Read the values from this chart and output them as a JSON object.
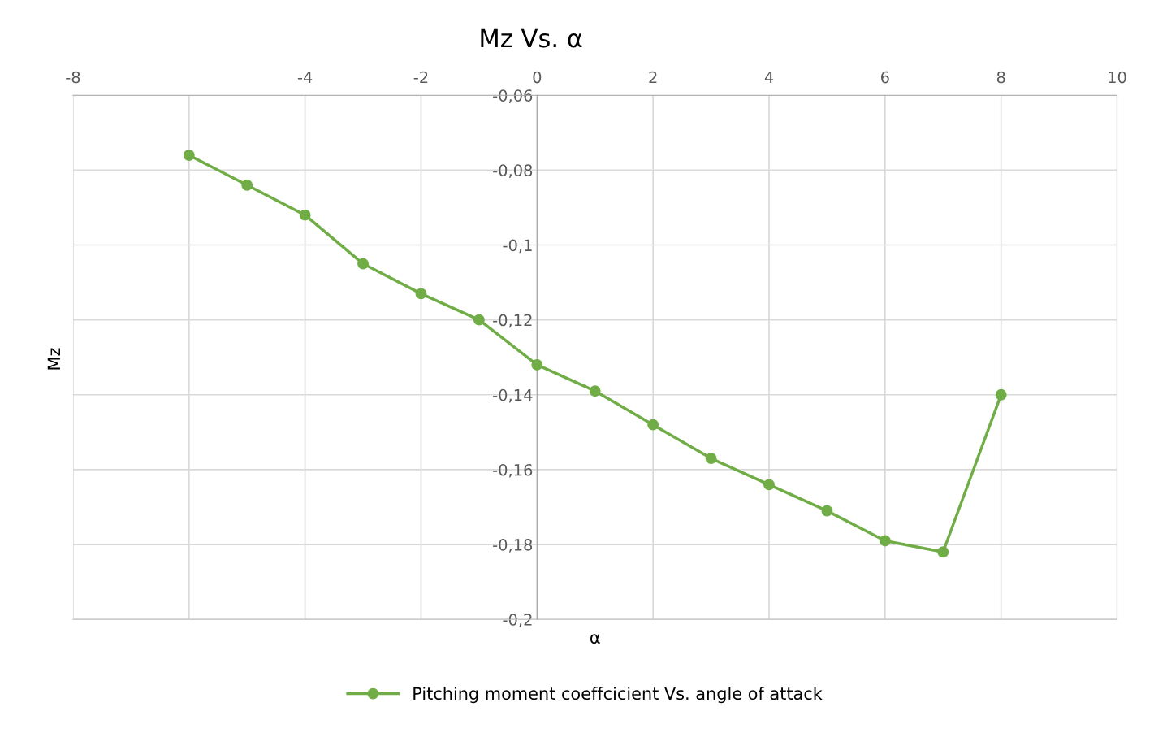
{
  "chart_data": {
    "type": "line",
    "title": "Mz Vs. α",
    "xlabel": "α",
    "ylabel": "Mz",
    "x": [
      -6,
      -5,
      -4,
      -3,
      -2,
      -1,
      0,
      1,
      2,
      3,
      4,
      5,
      6,
      7,
      8
    ],
    "series": [
      {
        "name": "Pitching moment coeffcicient Vs. angle of attack",
        "color": "#70ad47",
        "values": [
          -0.076,
          -0.084,
          -0.092,
          -0.105,
          -0.113,
          -0.12,
          -0.132,
          -0.139,
          -0.148,
          -0.157,
          -0.164,
          -0.171,
          -0.179,
          -0.182,
          -0.14
        ]
      }
    ],
    "xlim": [
      -8,
      10
    ],
    "xticks": [
      -8,
      {
        "value": -6,
        "label": null
      },
      -4,
      -2,
      0,
      2,
      4,
      6,
      8,
      10
    ],
    "ylim": [
      -0.2,
      -0.06
    ],
    "yticks": [
      {
        "value": -0.2,
        "label": "-0,2"
      },
      {
        "value": -0.18,
        "label": "-0,18"
      },
      {
        "value": -0.16,
        "label": "-0,16"
      },
      {
        "value": -0.14,
        "label": "-0,14"
      },
      {
        "value": -0.12,
        "label": "-0,12"
      },
      {
        "value": -0.1,
        "label": "-0,1"
      },
      {
        "value": -0.08,
        "label": "-0,08"
      },
      {
        "value": -0.06,
        "label": "-0,06"
      }
    ],
    "grid": true,
    "legend": "bottom",
    "marker": "circle",
    "line_style": "solid"
  }
}
